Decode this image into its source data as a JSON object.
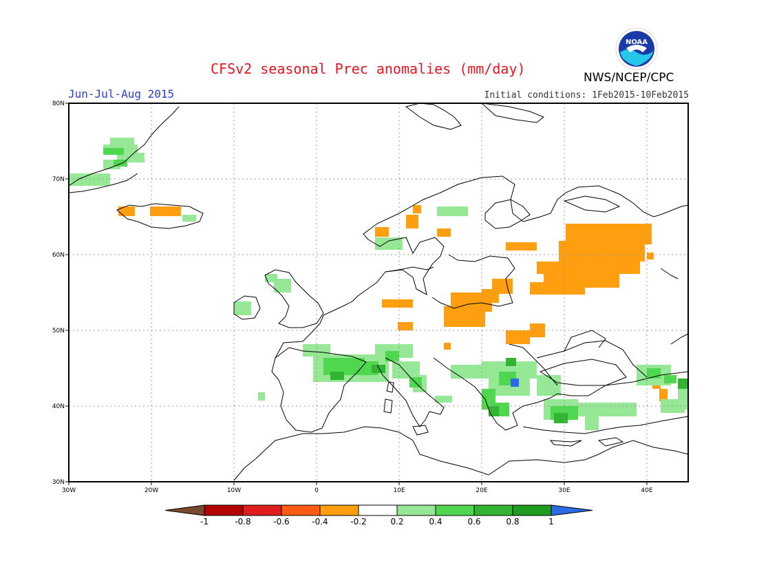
{
  "header": {
    "title": "CFSv2 seasonal Prec anomalies (mm/day)",
    "period": "Jun-Jul-Aug 2015",
    "initial_conditions": "Initial conditions: 1Feb2015-10Feb2015",
    "agency": "NWS/NCEP/CPC",
    "logo_text": "NOAA"
  },
  "map": {
    "lon_range": [
      -30,
      45
    ],
    "lat_range": [
      30,
      80
    ],
    "lon_ticks": [
      "30W",
      "20W",
      "10W",
      "0",
      "10E",
      "20E",
      "30E",
      "40E"
    ],
    "lat_ticks": [
      "30N",
      "40N",
      "50N",
      "60N",
      "70N",
      "80N"
    ],
    "grid": "dotted"
  },
  "legend": {
    "bins": [
      {
        "label": "-1",
        "color": "#7a4a2e"
      },
      {
        "label": "-0.8",
        "color": "#b40000"
      },
      {
        "label": "-0.6",
        "color": "#e01e1e"
      },
      {
        "label": "-0.4",
        "color": "#ff5a14"
      },
      {
        "label": "-0.2",
        "color": "#ff9f0f"
      },
      {
        "label": "0.2",
        "color": "#ffffff"
      },
      {
        "label": "0.4",
        "color": "#96e896"
      },
      {
        "label": "0.6",
        "color": "#50d750"
      },
      {
        "label": "0.8",
        "color": "#32b432"
      },
      {
        "label": "1",
        "color": "#1e9b1e"
      },
      {
        "label": "",
        "color": "#2b6be6"
      }
    ]
  },
  "anomaly_regions": [
    {
      "region": "Greenland coast",
      "class": "0.2-0.4"
    },
    {
      "region": "Iceland",
      "class": "-0.4--0.2"
    },
    {
      "region": "Norway west coast",
      "class": "-0.4--0.2"
    },
    {
      "region": "Western Russia",
      "class": "-0.4--0.2"
    },
    {
      "region": "Poland / Germany",
      "class": "-0.4--0.2"
    },
    {
      "region": "Southern France / Alps",
      "class": "0.4-0.6"
    },
    {
      "region": "Balkans / Greece",
      "class": "0.6-0.8"
    },
    {
      "region": "Bulgaria",
      "class": ">1"
    },
    {
      "region": "Turkey",
      "class": "0.4-0.6"
    },
    {
      "region": "Caucasus",
      "class": "0.6-0.8"
    }
  ]
}
